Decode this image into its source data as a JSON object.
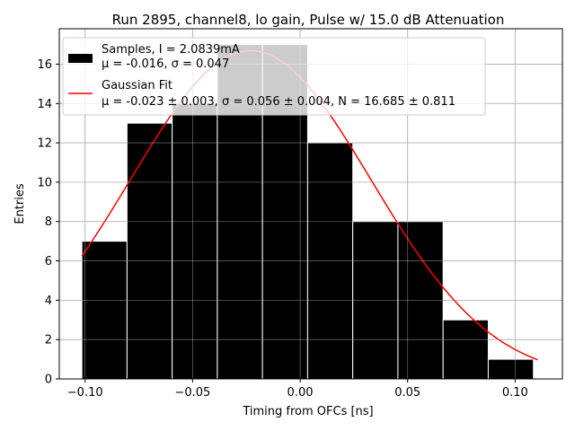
{
  "chart_data": {
    "type": "bar",
    "title": "Run 2895, channel8, lo gain, Pulse w/ 15.0 dB Attenuation",
    "xlabel": "Timing from OFCs [ns]",
    "ylabel": "Entries",
    "xlim": [
      -0.112,
      0.122
    ],
    "ylim": [
      0,
      17.8
    ],
    "grid": true,
    "legend_position": "top-left",
    "x_ticks": [
      -0.1,
      -0.05,
      0.0,
      0.05,
      0.1
    ],
    "x_tick_labels": [
      "−0.10",
      "−0.05",
      "0.00",
      "0.05",
      "0.10"
    ],
    "y_ticks": [
      0,
      2,
      4,
      6,
      8,
      10,
      12,
      14,
      16
    ],
    "y_tick_labels": [
      "0",
      "2",
      "4",
      "6",
      "8",
      "10",
      "12",
      "14",
      "16"
    ],
    "histogram": {
      "name": "Samples, I = 2.0839mA",
      "stats_label": "μ = -0.016, σ = 0.047",
      "color": "#000000",
      "edge_color": "#ffffff",
      "bin_edges": [
        -0.1015,
        -0.0805,
        -0.0595,
        -0.0385,
        -0.0175,
        0.0035,
        0.0245,
        0.0455,
        0.0665,
        0.0875,
        0.1085
      ],
      "counts": [
        7,
        13,
        14,
        17,
        17,
        12,
        8,
        8,
        3,
        1
      ]
    },
    "fit": {
      "name": "Gaussian Fit",
      "stats_label": "μ = -0.023 ± 0.003, σ = 0.056 ± 0.004, N = 16.685 ± 0.811",
      "color": "#ff0000",
      "mu": -0.023,
      "sigma": 0.056,
      "N": 16.685,
      "x_range": [
        -0.1015,
        0.1105
      ]
    }
  }
}
